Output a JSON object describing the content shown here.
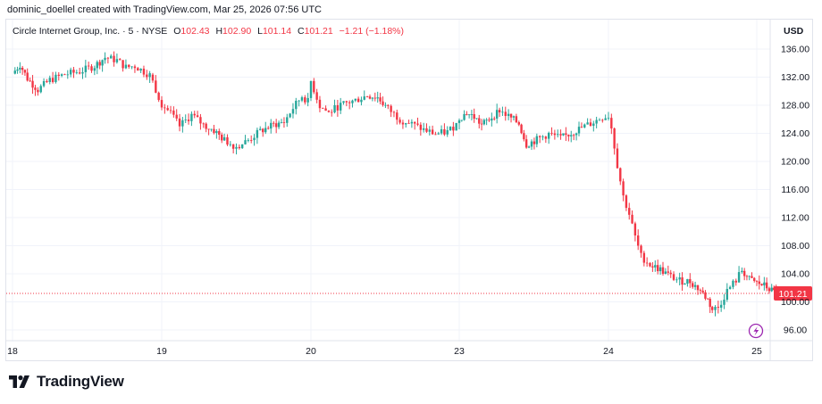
{
  "caption": "dominic_doellel created with TradingView.com, Mar 25, 2026 07:56 UTC",
  "legend": {
    "symbol": "Circle Internet Group, Inc. · 5 · NYSE",
    "open_label": "O",
    "open": "102.43",
    "high_label": "H",
    "high": "102.90",
    "low_label": "L",
    "low": "101.14",
    "close_label": "C",
    "close": "101.21",
    "change": "−1.21 (−1.18%)"
  },
  "currency": "USD",
  "brand": "TradingView",
  "colors": {
    "up": "#26a69a",
    "down": "#f23645",
    "grid": "#f0f3fa",
    "last_price_line": "#f23645"
  },
  "chart_data": {
    "type": "candlestick",
    "title": "Circle Internet Group, Inc. · 5 · NYSE",
    "interval": "5 min",
    "ylabel": "USD",
    "ylim": [
      94.5,
      138
    ],
    "y_ticks": [
      "136.00",
      "132.00",
      "128.00",
      "124.00",
      "120.00",
      "116.00",
      "112.00",
      "108.00",
      "104.00",
      "100.00",
      "96.00"
    ],
    "x_ticks": [
      "18",
      "19",
      "20",
      "23",
      "24",
      "25"
    ],
    "last_price": "101.21",
    "session_path": [
      [
        18,
        132.5
      ],
      [
        18.05,
        133.8
      ],
      [
        18.1,
        131.8
      ],
      [
        18.17,
        130.2
      ],
      [
        18.25,
        131.6
      ],
      [
        18.35,
        132.4
      ],
      [
        18.45,
        132.8
      ],
      [
        18.55,
        133.6
      ],
      [
        18.62,
        134.8
      ],
      [
        18.7,
        134.4
      ],
      [
        18.76,
        133.4
      ],
      [
        18.82,
        133.6
      ],
      [
        18.88,
        132.8
      ],
      [
        18.92,
        132.3
      ],
      [
        19.0,
        128.2
      ],
      [
        19.06,
        126.8
      ],
      [
        19.12,
        125.0
      ],
      [
        19.2,
        126.6
      ],
      [
        19.28,
        125.2
      ],
      [
        19.35,
        124.4
      ],
      [
        19.42,
        123.0
      ],
      [
        19.5,
        122.1
      ],
      [
        19.58,
        123.0
      ],
      [
        19.66,
        124.3
      ],
      [
        19.75,
        125.2
      ],
      [
        19.82,
        125.6
      ],
      [
        19.88,
        127.6
      ],
      [
        19.94,
        129.3
      ],
      [
        19.98,
        128.5
      ],
      [
        20.0,
        131.4
      ],
      [
        20.06,
        127.9
      ],
      [
        20.12,
        126.9
      ],
      [
        20.18,
        127.8
      ],
      [
        20.24,
        128.3
      ],
      [
        20.3,
        128.7
      ],
      [
        20.38,
        129.4
      ],
      [
        20.45,
        129.1
      ],
      [
        20.52,
        127.5
      ],
      [
        20.6,
        126.0
      ],
      [
        20.68,
        125.3
      ],
      [
        20.76,
        124.5
      ],
      [
        20.84,
        123.9
      ],
      [
        20.92,
        124.2
      ],
      [
        20.98,
        125.3
      ],
      [
        21.0,
        126.2
      ],
      [
        21.05,
        126.9
      ],
      [
        21.1,
        126.3
      ],
      [
        21.15,
        125.2
      ],
      [
        21.2,
        126.0
      ],
      [
        21.27,
        127.3
      ],
      [
        21.33,
        126.4
      ],
      [
        21.4,
        125.4
      ],
      [
        21.45,
        122.4
      ],
      [
        21.52,
        123.1
      ],
      [
        21.6,
        123.9
      ],
      [
        21.68,
        123.3
      ],
      [
        21.75,
        124.0
      ],
      [
        21.82,
        124.8
      ],
      [
        21.9,
        125.6
      ],
      [
        21.96,
        126.3
      ],
      [
        22.0,
        126.5
      ],
      [
        22.02,
        124.8
      ],
      [
        22.06,
        119.5
      ],
      [
        22.1,
        115.0
      ],
      [
        22.14,
        112.5
      ],
      [
        22.18,
        109.2
      ],
      [
        22.22,
        106.5
      ],
      [
        22.28,
        105.3
      ],
      [
        22.35,
        104.6
      ],
      [
        22.42,
        103.6
      ],
      [
        22.48,
        103.0
      ],
      [
        22.55,
        102.9
      ],
      [
        22.62,
        101.6
      ],
      [
        22.67,
        100.3
      ],
      [
        22.7,
        98.9
      ],
      [
        22.74,
        99.2
      ],
      [
        22.8,
        101.6
      ],
      [
        22.86,
        103.1
      ],
      [
        22.9,
        104.5
      ],
      [
        22.95,
        103.2
      ],
      [
        23.0,
        102.7
      ],
      [
        23.05,
        102.3
      ],
      [
        23.1,
        101.6
      ],
      [
        23.13,
        101.21
      ]
    ]
  }
}
